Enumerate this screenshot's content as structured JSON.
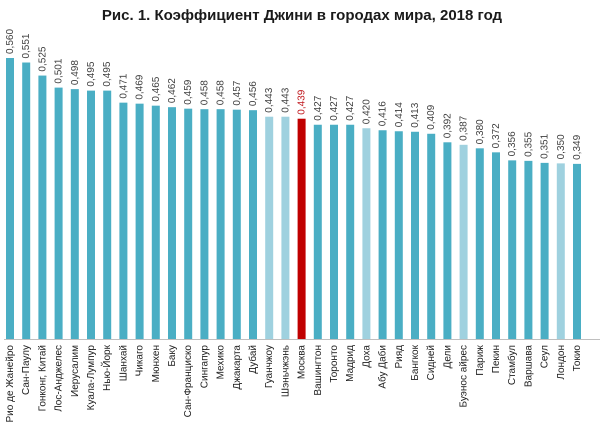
{
  "title": "Рис. 1. Коэффициент Джини в городах мира, 2018 год",
  "colors": {
    "bar": "#4aaec4",
    "bar_light": "#9fd1df",
    "highlight": "#c00000",
    "axis": "#bfbfbf"
  },
  "chart_data": {
    "type": "bar",
    "title": "Рис. 1. Коэффициент Джини в городах мира, 2018 год",
    "categories": [
      "Рио де Жанейро",
      "Сан-Паулу",
      "Гонконг, Китай",
      "Лос-Анджелес",
      "Иерусалим",
      "Куала-Лумпур",
      "Нью-Йорк",
      "Шанхай",
      "Чикаго",
      "Мюнхен",
      "Баку",
      "Сан-Франциско",
      "Сингапур",
      "Мехико",
      "Джакарта",
      "Дубай",
      "Гуанчжоу",
      "Шэньчжэнь",
      "Москва",
      "Вашингтон",
      "Торонто",
      "Мадрид",
      "Доха",
      "Абу Даби",
      "Рияд",
      "Бангкок",
      "Сидней",
      "Дели",
      "Буэнос айрес",
      "Париж",
      "Пекин",
      "Стамбул",
      "Варшава",
      "Сеул",
      "Лондон",
      "Токио"
    ],
    "values": [
      0.56,
      0.551,
      0.525,
      0.501,
      0.498,
      0.495,
      0.495,
      0.471,
      0.469,
      0.465,
      0.462,
      0.459,
      0.458,
      0.458,
      0.457,
      0.456,
      0.443,
      0.443,
      0.439,
      0.427,
      0.427,
      0.427,
      0.42,
      0.416,
      0.414,
      0.413,
      0.409,
      0.392,
      0.387,
      0.38,
      0.372,
      0.356,
      0.355,
      0.351,
      0.35,
      0.349
    ],
    "value_labels": [
      "0,560",
      "0,551",
      "0,525",
      "0,501",
      "0,498",
      "0,495",
      "0,495",
      "0,471",
      "0,469",
      "0,465",
      "0,462",
      "0,459",
      "0,458",
      "0,458",
      "0,457",
      "0,456",
      "0,443",
      "0,443",
      "0,439",
      "0,427",
      "0,427",
      "0,427",
      "0,420",
      "0,416",
      "0,414",
      "0,413",
      "0,409",
      "0,392",
      "0,387",
      "0,380",
      "0,372",
      "0,356",
      "0,355",
      "0,351",
      "0,350",
      "0,349"
    ],
    "highlight": [
      "Москва"
    ],
    "light": [
      "Гуанчжоу",
      "Шэньчжэнь",
      "Доха",
      "Буэнос айрес",
      "Лондон"
    ],
    "ylim": [
      0,
      0.56
    ]
  }
}
